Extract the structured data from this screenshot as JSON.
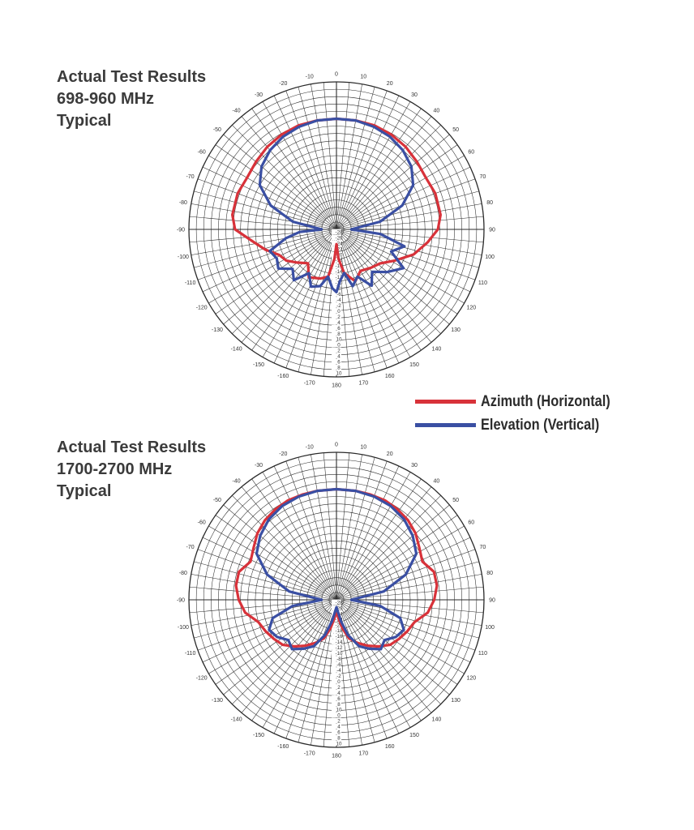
{
  "colors": {
    "azimuth": "#d8323a",
    "elevation": "#3a4fa3",
    "grid": "#2a2a2a",
    "text": "#3b3b3b"
  },
  "legend": [
    {
      "label": "Azimuth (Horizontal)",
      "color": "#d8323a"
    },
    {
      "label": "Elevation (Vertical)",
      "color": "#3a4fa3"
    }
  ],
  "chart_data": [
    {
      "type": "polar",
      "title_lines": [
        "Actual Test Results",
        "698-960 MHz",
        "Typical"
      ],
      "angle_unit": "degrees",
      "angle_ticks": [
        0,
        10,
        20,
        30,
        40,
        50,
        60,
        70,
        80,
        90,
        100,
        110,
        120,
        130,
        140,
        150,
        160,
        170,
        180,
        -170,
        -160,
        -150,
        -140,
        -130,
        -120,
        -110,
        -100,
        -90,
        -80,
        -70,
        -60,
        -50,
        -40,
        -30,
        -20,
        -10
      ],
      "radial_ticks_upper": [
        "-28",
        "-26",
        "-24",
        "-22",
        "-20",
        "-18",
        "-16",
        "-14",
        "-12",
        "-10",
        "-8",
        "-6",
        "-4",
        "-2",
        "0",
        "2",
        "4",
        "6",
        "8",
        "10"
      ],
      "radial_ticks_lower": [
        "0",
        "2",
        "4",
        "6",
        "8",
        "10"
      ],
      "rlim": [
        -30,
        10
      ],
      "grid": true,
      "series": [
        {
          "name": "Azimuth (Horizontal)",
          "angles": [
            -90,
            -82,
            -70,
            -60,
            -50,
            -40,
            -30,
            -20,
            -10,
            0,
            10,
            20,
            30,
            40,
            50,
            60,
            70,
            82,
            90,
            98,
            108,
            118,
            128,
            138,
            150,
            160,
            170,
            176,
            180,
            -176,
            -170,
            -162,
            -150,
            -140,
            -130,
            -122,
            -114,
            -106,
            -98,
            -90
          ],
          "values": [
            -2.5,
            -1.5,
            -1.5,
            -2,
            -1.5,
            -0.8,
            -0.3,
            0,
            0,
            0,
            0,
            0,
            -0.3,
            -0.8,
            -1.5,
            -2,
            -1.5,
            -1.5,
            -2.5,
            -5,
            -8,
            -12,
            -15,
            -16,
            -17,
            -15,
            -18,
            -22,
            -26,
            -22,
            -17,
            -16,
            -15,
            -18,
            -16,
            -14,
            -13,
            -10,
            -7,
            -2.5
          ]
        },
        {
          "name": "Elevation (Vertical)",
          "angles": [
            -90,
            -80,
            -70,
            -60,
            -50,
            -40,
            -30,
            -20,
            -10,
            0,
            10,
            20,
            30,
            40,
            50,
            60,
            70,
            80,
            90,
            96,
            104,
            112,
            120,
            130,
            140,
            148,
            156,
            164,
            170,
            176,
            180,
            -176,
            -170,
            -164,
            -156,
            -148,
            -140,
            -132,
            -124,
            -116,
            -108,
            -100,
            -94,
            -90
          ],
          "values": [
            -26,
            -18,
            -11,
            -6,
            -3.5,
            -2,
            -1,
            -0.4,
            0,
            0,
            0,
            -0.4,
            -1,
            -2,
            -3.5,
            -6,
            -11,
            -18,
            -26,
            -18,
            -11,
            -14,
            -9,
            -12,
            -15,
            -12,
            -16,
            -14,
            -18,
            -16,
            -13,
            -14,
            -17,
            -14,
            -13,
            -16,
            -12,
            -14,
            -11,
            -12,
            -11,
            -16,
            -20,
            -26
          ]
        }
      ]
    },
    {
      "type": "polar",
      "title_lines": [
        "Actual Test Results",
        "1700-2700 MHz",
        "Typical"
      ],
      "angle_unit": "degrees",
      "angle_ticks": [
        0,
        10,
        20,
        30,
        40,
        50,
        60,
        70,
        80,
        90,
        100,
        110,
        120,
        130,
        140,
        150,
        160,
        170,
        180,
        -170,
        -160,
        -150,
        -140,
        -130,
        -120,
        -110,
        -100,
        -90,
        -80,
        -70,
        -60,
        -50,
        -40,
        -30,
        -20,
        -10
      ],
      "radial_ticks_upper": [
        "-28",
        "-26",
        "-24",
        "-22",
        "-20",
        "-18",
        "-16",
        "-14",
        "-12",
        "-10",
        "-8",
        "-6",
        "-4",
        "-2",
        "0",
        "2",
        "4",
        "6",
        "8",
        "10"
      ],
      "radial_ticks_lower": [
        "0",
        "2",
        "4",
        "6",
        "8",
        "10"
      ],
      "rlim": [
        -30,
        10
      ],
      "grid": true,
      "series": [
        {
          "name": "Azimuth (Horizontal)",
          "angles": [
            -90,
            -82,
            -74,
            -66,
            -58,
            -50,
            -42,
            -34,
            -26,
            -18,
            -10,
            0,
            10,
            18,
            26,
            34,
            42,
            50,
            58,
            66,
            74,
            82,
            90,
            98,
            106,
            114,
            122,
            130,
            138,
            146,
            154,
            162,
            168,
            174,
            180,
            -174,
            -168,
            -162,
            -154,
            -146,
            -138,
            -130,
            -122,
            -114,
            -106,
            -98,
            -90
          ],
          "values": [
            -3.5,
            -2.5,
            -2.5,
            -4.5,
            -3.5,
            -2,
            -1,
            -0.4,
            0,
            0,
            0,
            0,
            0,
            0,
            0,
            -0.4,
            -1,
            -2,
            -3.5,
            -4.5,
            -2.5,
            -2.5,
            -3.5,
            -5,
            -8,
            -9,
            -10,
            -11,
            -13,
            -15,
            -17,
            -19,
            -22,
            -25,
            -27,
            -25,
            -22,
            -19,
            -17,
            -15,
            -13,
            -11,
            -10,
            -9,
            -8,
            -5,
            -3.5
          ]
        },
        {
          "name": "Elevation (Vertical)",
          "angles": [
            -90,
            -80,
            -70,
            -60,
            -50,
            -40,
            -30,
            -20,
            -10,
            0,
            10,
            20,
            30,
            40,
            50,
            60,
            70,
            80,
            90,
            98,
            106,
            114,
            122,
            130,
            138,
            146,
            154,
            162,
            168,
            174,
            180,
            -174,
            -168,
            -162,
            -154,
            -146,
            -138,
            -130,
            -122,
            -114,
            -106,
            -98,
            -90
          ],
          "values": [
            -26,
            -17,
            -10,
            -5,
            -3,
            -1.5,
            -0.6,
            -0.2,
            0,
            0,
            0,
            -0.2,
            -0.6,
            -1.5,
            -3,
            -5,
            -10,
            -17,
            -26,
            -18,
            -12,
            -10,
            -11,
            -13,
            -12,
            -14,
            -16,
            -20,
            -24,
            -27,
            -28,
            -27,
            -24,
            -20,
            -16,
            -14,
            -12,
            -13,
            -11,
            -10,
            -12,
            -18,
            -26
          ]
        }
      ]
    }
  ]
}
